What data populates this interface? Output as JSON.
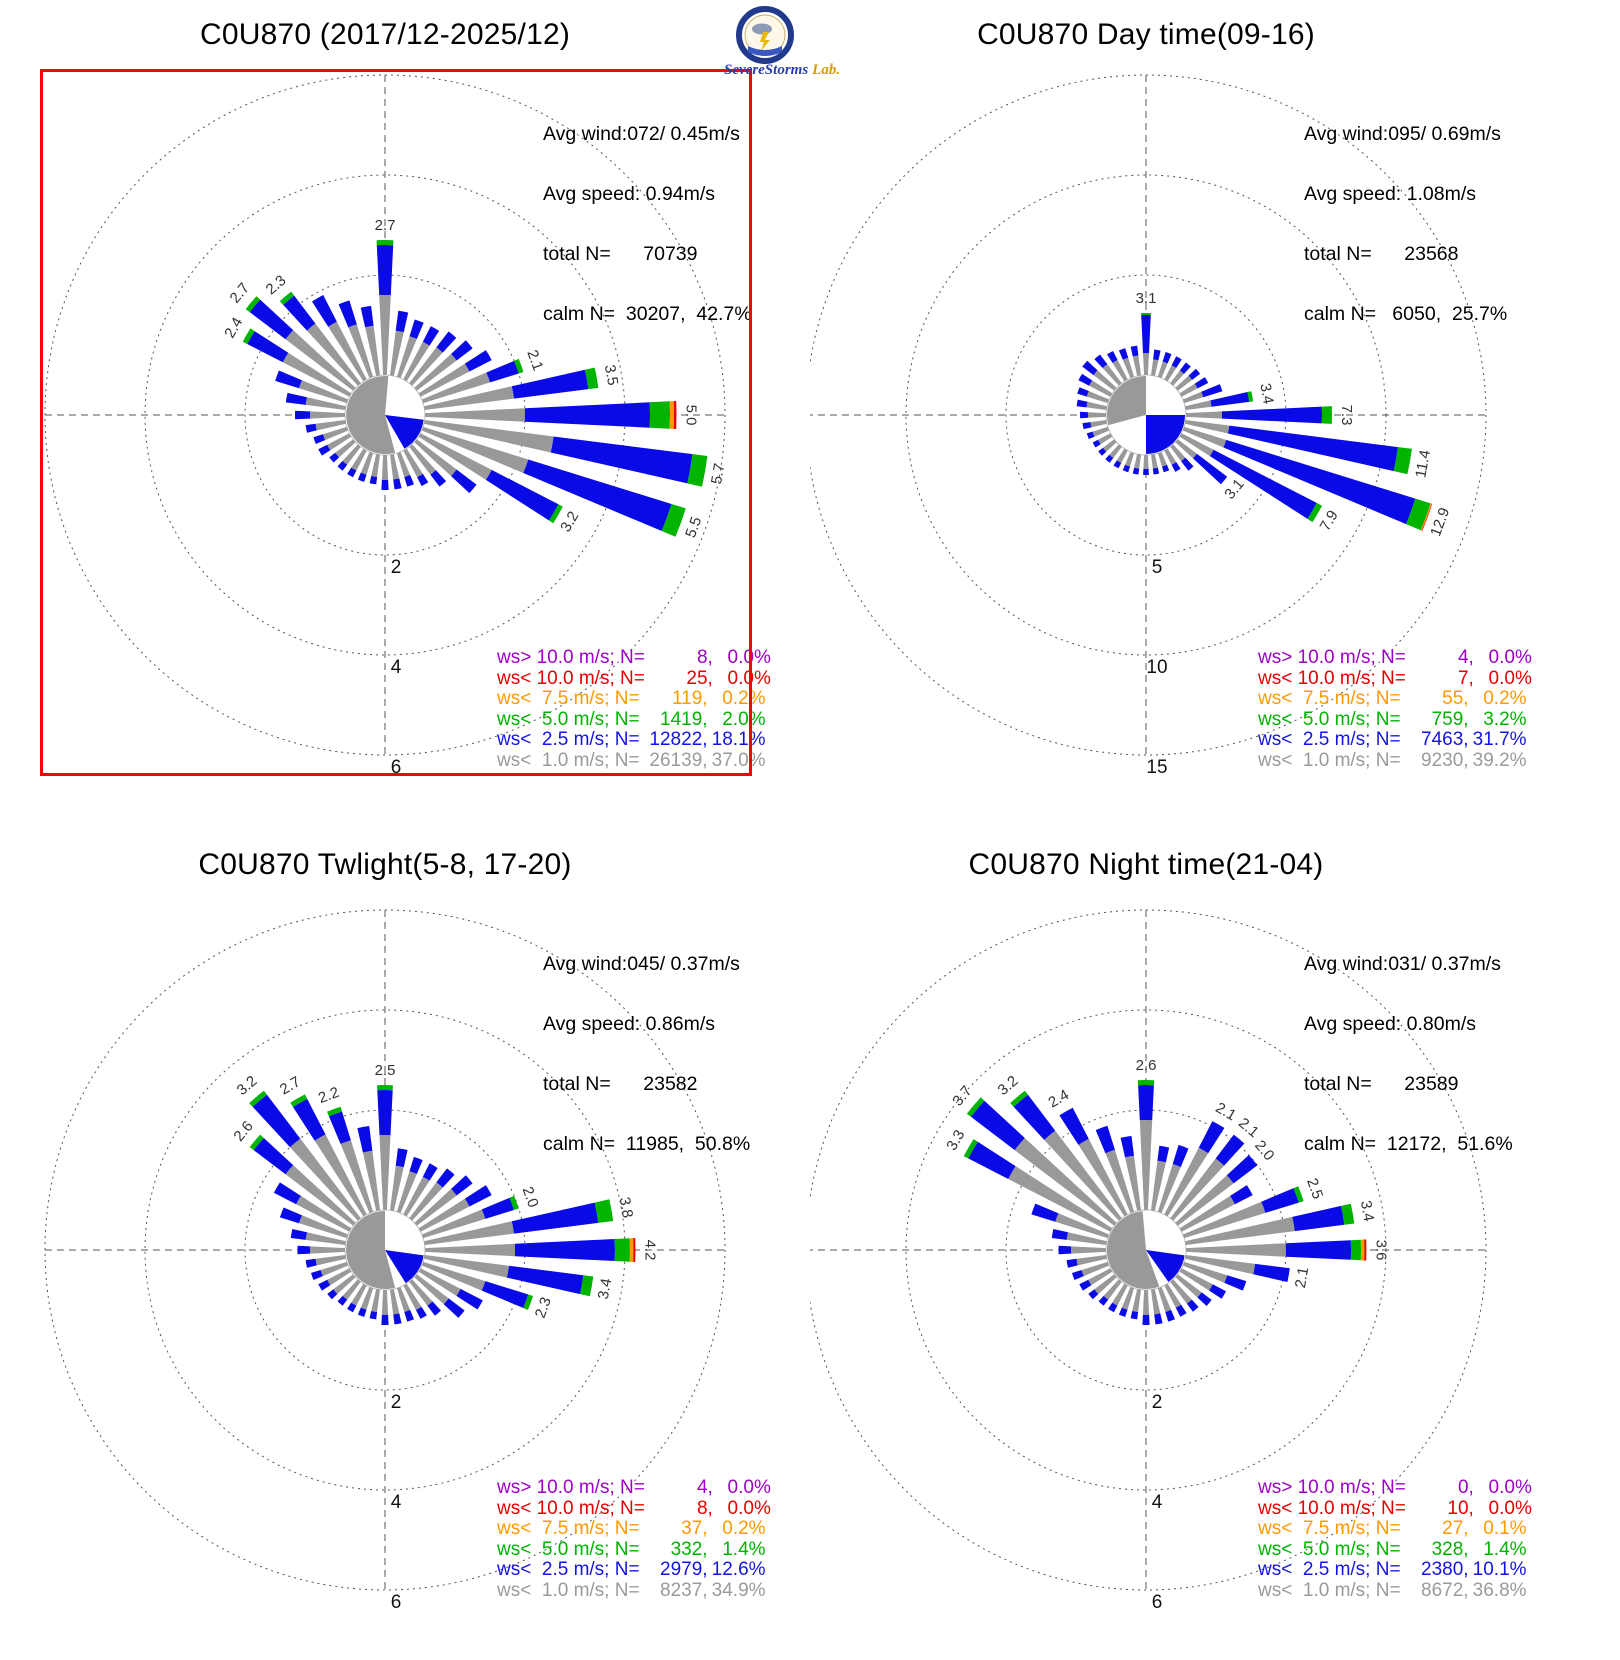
{
  "page": {
    "background": "#ffffff",
    "units": "percent of observations per direction"
  },
  "logo": {
    "name": "SevereStorms",
    "suffix": "Lab."
  },
  "selection": {
    "panel_index": 0,
    "color": "#fa0000"
  },
  "colors": {
    "gray": "#999999",
    "blue": "#0a0ae6",
    "green": "#00b400",
    "orange": "#ff9900",
    "red": "#e60000",
    "purple": "#a000c8",
    "grid": "#555555",
    "tip_label": "#333333"
  },
  "series_labels": {
    "lt1": "ws< 1.0 m/s",
    "lt2_5": "ws< 2.5 m/s",
    "lt5": "ws< 5.0 m/s",
    "lt7_5": "ws< 7.5 m/s",
    "lt10": "ws< 10.0 m/s",
    "gt10": "ws> 10.0 m/s"
  },
  "chart_data": [
    {
      "type": "windrose",
      "title": "C0U870 (2017/12-2025/12)",
      "highlighted": true,
      "stats": [
        "Avg wind:072/ 0.45m/s",
        "Avg speed: 0.94m/s",
        "total N=      70739",
        "calm N=  30207,  42.7%"
      ],
      "ring_values": [
        2,
        4,
        6
      ],
      "ring_labels": [
        "2",
        "4",
        "6"
      ],
      "direction_step_deg": 10,
      "bars": {
        "lt1": [
          1.6,
          0.9,
          0.85,
          0.85,
          0.9,
          1.0,
          1.1,
          1.4,
          1.8,
          2.0,
          2.6,
          2.2,
          1.6,
          1.0,
          0.7,
          0.6,
          0.5,
          0.5,
          0.5,
          0.45,
          0.45,
          0.45,
          0.45,
          0.45,
          0.5,
          0.5,
          0.6,
          0.7,
          0.8,
          1.0,
          1.5,
          1.7,
          1.5,
          1.3,
          1.1,
          1.0
        ],
        "lt2_5": [
          1.0,
          0.4,
          0.35,
          0.35,
          0.4,
          0.4,
          0.5,
          0.6,
          1.5,
          2.5,
          2.8,
          3.0,
          1.5,
          0.5,
          0.3,
          0.2,
          0.2,
          0.2,
          0.2,
          0.15,
          0.15,
          0.15,
          0.15,
          0.15,
          0.2,
          0.2,
          0.2,
          0.3,
          0.4,
          0.5,
          0.8,
          0.9,
          0.7,
          0.6,
          0.5,
          0.4
        ],
        "lt5": [
          0.1,
          0,
          0,
          0,
          0,
          0,
          0,
          0.1,
          0.2,
          0.4,
          0.3,
          0.3,
          0.1,
          0,
          0,
          0,
          0,
          0,
          0,
          0,
          0,
          0,
          0,
          0,
          0,
          0,
          0,
          0,
          0,
          0,
          0.1,
          0.1,
          0.1,
          0,
          0,
          0
        ]
      },
      "tip_extras": {
        "90": [
          0.08,
          0.05,
          0
        ]
      },
      "tip_labels": {
        "0": "2.7",
        "70": "2.1",
        "80": "3.5",
        "90": "5.0",
        "100": "5.7",
        "110": "5.5",
        "120": "3.2",
        "300": "2.4",
        "310": "2.7",
        "320": "2.3"
      },
      "center_pie": [
        {
          "from": 165,
          "to": 365,
          "color": "gray"
        },
        {
          "from": 97,
          "to": 150,
          "color": "blue"
        }
      ],
      "legend": [
        {
          "prefix": "ws> 10.0 m/s; N=",
          "n": "8,",
          "pct": "0.0%",
          "color": "purple"
        },
        {
          "prefix": "ws< 10.0 m/s; N=",
          "n": "25,",
          "pct": "0.0%",
          "color": "red"
        },
        {
          "prefix": "ws<  7.5 m/s; N=",
          "n": "119,",
          "pct": "0.2%",
          "color": "orange"
        },
        {
          "prefix": "ws<  5.0 m/s; N=",
          "n": "1419,",
          "pct": "2.0%",
          "color": "green"
        },
        {
          "prefix": "ws<  2.5 m/s; N=",
          "n": "12822,",
          "pct": "18.1%",
          "color": "blue"
        },
        {
          "prefix": "ws<  1.0 m/s; N=",
          "n": "26139,",
          "pct": "37.0%",
          "color": "gray"
        }
      ]
    },
    {
      "type": "windrose",
      "title": "C0U870 Day time(09-16)",
      "highlighted": false,
      "stats": [
        "Avg wind:095/ 0.69m/s",
        "Avg speed: 1.08m/s",
        "total N=      23568",
        "calm N=   6050,  25.7%"
      ],
      "ring_values": [
        5,
        10,
        15
      ],
      "ring_labels": [
        "5",
        "10",
        "15"
      ],
      "direction_step_deg": 10,
      "bars": {
        "lt1": [
          1.1,
          0.8,
          0.8,
          0.8,
          0.8,
          0.9,
          0.9,
          1.0,
          1.3,
          1.8,
          2.2,
          2.2,
          1.8,
          1.2,
          0.9,
          0.8,
          0.7,
          0.7,
          0.7,
          0.7,
          0.7,
          0.7,
          0.7,
          0.7,
          0.7,
          0.8,
          0.8,
          0.9,
          1.0,
          1.1,
          1.2,
          1.3,
          1.2,
          1.1,
          1.0,
          1.0
        ],
        "lt2_5": [
          1.9,
          0.5,
          0.5,
          0.5,
          0.5,
          0.5,
          0.6,
          1.0,
          1.9,
          5.0,
          8.5,
          9.9,
          5.8,
          1.9,
          0.6,
          0.4,
          0.3,
          0.3,
          0.3,
          0.3,
          0.3,
          0.3,
          0.3,
          0.3,
          0.3,
          0.3,
          0.4,
          0.4,
          0.5,
          0.5,
          0.6,
          0.7,
          0.6,
          0.5,
          0.5,
          0.5
        ],
        "lt5": [
          0.1,
          0,
          0,
          0,
          0,
          0,
          0,
          0,
          0.2,
          0.5,
          0.7,
          0.8,
          0.3,
          0,
          0,
          0,
          0,
          0,
          0,
          0,
          0,
          0,
          0,
          0,
          0,
          0,
          0,
          0,
          0,
          0,
          0,
          0,
          0,
          0,
          0,
          0
        ]
      },
      "tip_extras": {
        "110": [
          0.05,
          0.03,
          0
        ]
      },
      "tip_labels": {
        "0": "3.1",
        "80": "3.4",
        "90": "7.3",
        "100": "11.4",
        "110": "12.9",
        "120": "7.9",
        "130": "3.1"
      },
      "center_pie": [
        {
          "from": 255,
          "to": 360,
          "color": "gray"
        },
        {
          "from": 90,
          "to": 180,
          "color": "blue"
        }
      ],
      "legend": [
        {
          "prefix": "ws> 10.0 m/s; N=",
          "n": "4,",
          "pct": "0.0%",
          "color": "purple"
        },
        {
          "prefix": "ws< 10.0 m/s; N=",
          "n": "7,",
          "pct": "0.0%",
          "color": "red"
        },
        {
          "prefix": "ws<  7.5 m/s; N=",
          "n": "55,",
          "pct": "0.2%",
          "color": "orange"
        },
        {
          "prefix": "ws<  5.0 m/s; N=",
          "n": "759,",
          "pct": "3.2%",
          "color": "green"
        },
        {
          "prefix": "ws<  2.5 m/s; N=",
          "n": "7463,",
          "pct": "31.7%",
          "color": "blue"
        },
        {
          "prefix": "ws<  1.0 m/s; N=",
          "n": "9230,",
          "pct": "39.2%",
          "color": "gray"
        }
      ]
    },
    {
      "type": "windrose",
      "title": "C0U870 Twlight(5-8, 17-20)",
      "highlighted": false,
      "stats": [
        "Avg wind:045/ 0.37m/s",
        "Avg speed: 0.86m/s",
        "total N=      23582",
        "calm N=  11985,  50.8%"
      ],
      "ring_values": [
        2,
        4,
        6
      ],
      "ring_labels": [
        "2",
        "4",
        "6"
      ],
      "direction_step_deg": 10,
      "bars": {
        "lt1": [
          1.5,
          0.9,
          0.85,
          0.85,
          0.9,
          1.0,
          1.1,
          1.3,
          1.8,
          1.8,
          1.7,
          1.3,
          0.9,
          0.8,
          0.6,
          0.55,
          0.5,
          0.5,
          0.5,
          0.45,
          0.45,
          0.45,
          0.45,
          0.5,
          0.5,
          0.55,
          0.6,
          0.7,
          0.8,
          1.0,
          1.2,
          1.7,
          2.0,
          1.8,
          1.5,
          1.2
        ],
        "lt2_5": [
          0.9,
          0.35,
          0.3,
          0.3,
          0.35,
          0.4,
          0.5,
          0.6,
          1.7,
          2.0,
          1.5,
          0.9,
          0.5,
          0.4,
          0.25,
          0.2,
          0.2,
          0.2,
          0.2,
          0.15,
          0.15,
          0.15,
          0.15,
          0.15,
          0.2,
          0.2,
          0.2,
          0.25,
          0.3,
          0.4,
          0.5,
          0.8,
          1.1,
          0.8,
          0.6,
          0.5
        ],
        "lt5": [
          0.1,
          0,
          0,
          0,
          0,
          0,
          0,
          0.1,
          0.3,
          0.3,
          0.2,
          0.1,
          0,
          0,
          0,
          0,
          0,
          0,
          0,
          0,
          0,
          0,
          0,
          0,
          0,
          0,
          0,
          0,
          0,
          0,
          0,
          0.1,
          0.1,
          0.1,
          0.1,
          0
        ]
      },
      "tip_extras": {
        "90": [
          0.07,
          0.04,
          0
        ]
      },
      "tip_labels": {
        "0": "2.5",
        "70": "2.0",
        "80": "3.8",
        "90": "4.2",
        "100": "3.4",
        "110": "2.3",
        "310": "2.6",
        "320": "3.2",
        "330": "2.7",
        "340": "2.2"
      },
      "center_pie": [
        {
          "from": 165,
          "to": 360,
          "color": "gray"
        },
        {
          "from": 98,
          "to": 148,
          "color": "blue"
        }
      ],
      "legend": [
        {
          "prefix": "ws> 10.0 m/s; N=",
          "n": "4,",
          "pct": "0.0%",
          "color": "purple"
        },
        {
          "prefix": "ws< 10.0 m/s; N=",
          "n": "8,",
          "pct": "0.0%",
          "color": "red"
        },
        {
          "prefix": "ws<  7.5 m/s; N=",
          "n": "37,",
          "pct": "0.2%",
          "color": "orange"
        },
        {
          "prefix": "ws<  5.0 m/s; N=",
          "n": "332,",
          "pct": "1.4%",
          "color": "green"
        },
        {
          "prefix": "ws<  2.5 m/s; N=",
          "n": "2979,",
          "pct": "12.6%",
          "color": "blue"
        },
        {
          "prefix": "ws<  1.0 m/s; N=",
          "n": "8237,",
          "pct": "34.9%",
          "color": "gray"
        }
      ]
    },
    {
      "type": "windrose",
      "title": "C0U870 Night time(21-04)",
      "highlighted": false,
      "stats": [
        "Avg wind:031/ 0.37m/s",
        "Avg speed: 0.80m/s",
        "total N=      23589",
        "calm N=  12172,  51.6%"
      ],
      "ring_values": [
        2,
        4,
        6
      ],
      "ring_labels": [
        "2",
        "4",
        "6"
      ],
      "direction_step_deg": 10,
      "bars": {
        "lt1": [
          1.8,
          1.0,
          1.0,
          1.5,
          1.5,
          1.4,
          1.2,
          1.7,
          2.2,
          2.0,
          1.4,
          0.9,
          0.7,
          0.6,
          0.55,
          0.5,
          0.5,
          0.5,
          0.5,
          0.45,
          0.45,
          0.45,
          0.45,
          0.5,
          0.5,
          0.55,
          0.6,
          0.7,
          0.8,
          1.1,
          2.3,
          2.5,
          2.2,
          1.7,
          1.3,
          1.1
        ],
        "lt2_5": [
          0.7,
          0.3,
          0.4,
          0.6,
          0.6,
          0.6,
          0.4,
          0.7,
          1.0,
          1.3,
          0.7,
          0.4,
          0.3,
          0.25,
          0.2,
          0.2,
          0.2,
          0.2,
          0.2,
          0.15,
          0.15,
          0.15,
          0.15,
          0.15,
          0.2,
          0.2,
          0.2,
          0.25,
          0.3,
          0.5,
          0.9,
          1.1,
          0.9,
          0.7,
          0.5,
          0.4
        ],
        "lt5": [
          0.1,
          0,
          0,
          0,
          0,
          0,
          0,
          0.1,
          0.2,
          0.2,
          0,
          0,
          0,
          0,
          0,
          0,
          0,
          0,
          0,
          0,
          0,
          0,
          0,
          0,
          0,
          0,
          0,
          0,
          0,
          0,
          0.1,
          0.1,
          0.1,
          0,
          0,
          0
        ]
      },
      "tip_extras": {
        "90": [
          0.07,
          0.04,
          0
        ]
      },
      "tip_labels": {
        "0": "2.6",
        "30": "2.1",
        "40": "2.1",
        "50": "2.0",
        "70": "2.5",
        "80": "3.4",
        "90": "3.6",
        "100": "2.1",
        "300": "3.3",
        "310": "3.7",
        "320": "3.2",
        "330": "2.4"
      },
      "center_pie": [
        {
          "from": 160,
          "to": 355,
          "color": "gray"
        },
        {
          "from": 98,
          "to": 145,
          "color": "blue"
        }
      ],
      "legend": [
        {
          "prefix": "ws> 10.0 m/s; N=",
          "n": "0,",
          "pct": "0.0%",
          "color": "purple"
        },
        {
          "prefix": "ws< 10.0 m/s; N=",
          "n": "10,",
          "pct": "0.0%",
          "color": "red"
        },
        {
          "prefix": "ws<  7.5 m/s; N=",
          "n": "27,",
          "pct": "0.1%",
          "color": "orange"
        },
        {
          "prefix": "ws<  5.0 m/s; N=",
          "n": "328,",
          "pct": "1.4%",
          "color": "green"
        },
        {
          "prefix": "ws<  2.5 m/s; N=",
          "n": "2380,",
          "pct": "10.1%",
          "color": "blue"
        },
        {
          "prefix": "ws<  1.0 m/s; N=",
          "n": "8672,",
          "pct": "36.8%",
          "color": "gray"
        }
      ]
    }
  ]
}
